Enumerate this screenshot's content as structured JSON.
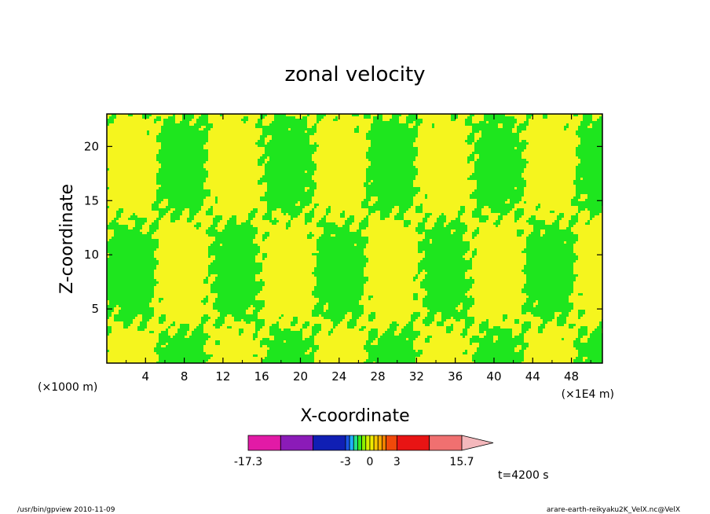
{
  "chart_data": {
    "type": "heatmap",
    "title": "zonal velocity",
    "xlabel": "X-coordinate",
    "ylabel": "Z-coordinate",
    "x_unit_left": "(×1000 m)",
    "x_unit_right": "(×1E4 m)",
    "x_ticks": [
      "4",
      "8",
      "12",
      "16",
      "20",
      "24",
      "28",
      "32",
      "36",
      "40",
      "44",
      "48"
    ],
    "y_ticks": [
      "5",
      "10",
      "15",
      "20"
    ],
    "xlim": [
      0,
      51.2
    ],
    "ylim": [
      0,
      23
    ],
    "colorbar": {
      "levels": [
        -17.3,
        -12.5,
        -7.5,
        -3,
        -2.5,
        -2,
        -1.5,
        -1,
        -0.5,
        0,
        0.5,
        1,
        1.5,
        2,
        3,
        7.5,
        15.7
      ],
      "colors": [
        "#e21aa6",
        "#8b1bb8",
        "#101fb4",
        "#1a55e6",
        "#20b0ff",
        "#22e089",
        "#34e822",
        "#8cf000",
        "#d6f000",
        "#f0ec00",
        "#f7c800",
        "#f7a800",
        "#f08000",
        "#f04a0a",
        "#e81414",
        "#f07070"
      ],
      "extend_color": "#f4b8bc",
      "tick_labels": [
        "-17.3",
        "-3",
        "0",
        "3",
        "15.7"
      ],
      "tick_values": [
        -17.3,
        -3,
        0,
        3,
        15.7
      ]
    },
    "field_colors": {
      "negative": "#1ee61e",
      "positive": "#f5f51e",
      "contour": "#000000"
    },
    "grid": false
  },
  "annotation_time": "t=4200 s",
  "footer_left": "/usr/bin/gpview   2010-11-09",
  "footer_right": "arare-earth-reikyaku2K_VelX.nc@VelX"
}
